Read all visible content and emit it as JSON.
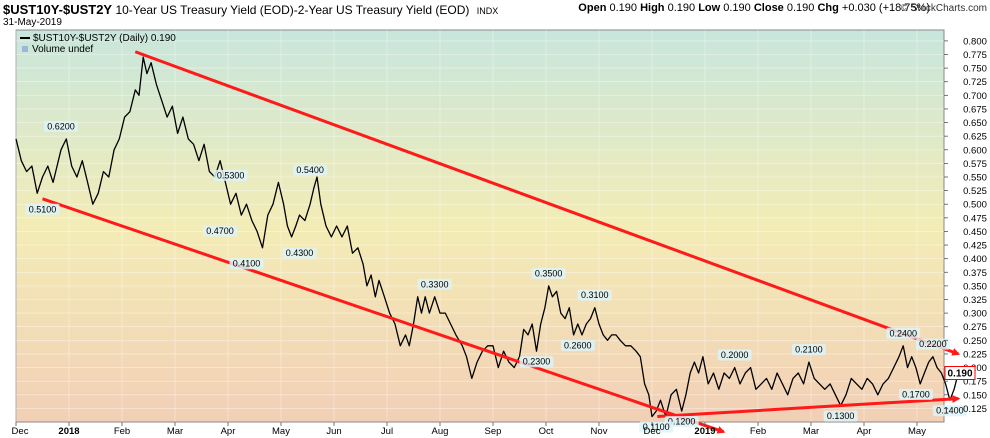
{
  "header": {
    "symbol": "$UST10Y-$UST2Y",
    "description": "10-Year US Treasury Yield (EOD)-2-Year US Treasury Yield (EOD)",
    "exchange": "INDX",
    "date": "31-May-2019",
    "open_label": "Open",
    "open": "0.190",
    "high_label": "High",
    "high": "0.190",
    "low_label": "Low",
    "low": "0.190",
    "close_label": "Close",
    "close": "0.190",
    "chg_label": "Chg",
    "chg": "+0.030 (+18.75%)",
    "brand": "© StockCharts.com"
  },
  "legend": {
    "series_label": "$UST10Y-$UST2Y (Daily) 0.190",
    "volume_label": "Volume undef"
  },
  "colors": {
    "line": "#000000",
    "trend": "#ff1a1a",
    "bg_top": "#c8e6dc",
    "bg_mid": "#f3ecb6",
    "bg_bottom": "#f2cfb6",
    "last_box_border": "#ff0000",
    "label_fill": "#ddf3f8"
  },
  "chart_data": {
    "type": "line",
    "x_unit": "months since Dec 1, 2017",
    "ylim": [
      0.1,
      0.82
    ],
    "xlim": [
      0,
      18.1
    ],
    "yticks": [
      "0.125",
      "0.150",
      "0.175",
      "0.200",
      "0.225",
      "0.250",
      "0.275",
      "0.300",
      "0.325",
      "0.350",
      "0.375",
      "0.400",
      "0.425",
      "0.450",
      "0.475",
      "0.500",
      "0.525",
      "0.550",
      "0.575",
      "0.600",
      "0.625",
      "0.650",
      "0.675",
      "0.700",
      "0.725",
      "0.750",
      "0.775",
      "0.800"
    ],
    "ytick_values": [
      0.125,
      0.15,
      0.175,
      0.2,
      0.225,
      0.25,
      0.275,
      0.3,
      0.325,
      0.35,
      0.375,
      0.4,
      0.425,
      0.45,
      0.475,
      0.5,
      0.525,
      0.55,
      0.575,
      0.6,
      0.625,
      0.65,
      0.675,
      0.7,
      0.725,
      0.75,
      0.775,
      0.8
    ],
    "xticks": [
      {
        "label": "Dec",
        "x": 0,
        "bold": false
      },
      {
        "label": "2018",
        "x": 1,
        "bold": true
      },
      {
        "label": "Feb",
        "x": 2,
        "bold": false
      },
      {
        "label": "Mar",
        "x": 3,
        "bold": false
      },
      {
        "label": "Apr",
        "x": 4,
        "bold": false
      },
      {
        "label": "May",
        "x": 5,
        "bold": false
      },
      {
        "label": "Jun",
        "x": 6,
        "bold": false
      },
      {
        "label": "Jul",
        "x": 7,
        "bold": false
      },
      {
        "label": "Aug",
        "x": 8,
        "bold": false
      },
      {
        "label": "Sep",
        "x": 9,
        "bold": false
      },
      {
        "label": "Oct",
        "x": 10,
        "bold": false
      },
      {
        "label": "Nov",
        "x": 11,
        "bold": false
      },
      {
        "label": "Dec",
        "x": 12,
        "bold": false
      },
      {
        "label": "2019",
        "x": 13,
        "bold": true
      },
      {
        "label": "Feb",
        "x": 14,
        "bold": false
      },
      {
        "label": "Mar",
        "x": 15,
        "bold": false
      },
      {
        "label": "Apr",
        "x": 16,
        "bold": false
      },
      {
        "label": "May",
        "x": 17,
        "bold": false
      }
    ],
    "series": [
      {
        "values": [
          [
            0.0,
            0.62
          ],
          [
            0.1,
            0.58
          ],
          [
            0.2,
            0.56
          ],
          [
            0.3,
            0.57
          ],
          [
            0.4,
            0.52
          ],
          [
            0.5,
            0.55
          ],
          [
            0.6,
            0.57
          ],
          [
            0.7,
            0.54
          ],
          [
            0.85,
            0.6
          ],
          [
            0.95,
            0.62
          ],
          [
            1.05,
            0.57
          ],
          [
            1.15,
            0.55
          ],
          [
            1.25,
            0.58
          ],
          [
            1.35,
            0.54
          ],
          [
            1.45,
            0.5
          ],
          [
            1.55,
            0.52
          ],
          [
            1.65,
            0.56
          ],
          [
            1.75,
            0.55
          ],
          [
            1.85,
            0.6
          ],
          [
            1.95,
            0.62
          ],
          [
            2.05,
            0.66
          ],
          [
            2.15,
            0.67
          ],
          [
            2.25,
            0.71
          ],
          [
            2.32,
            0.7
          ],
          [
            2.4,
            0.77
          ],
          [
            2.47,
            0.74
          ],
          [
            2.55,
            0.76
          ],
          [
            2.65,
            0.72
          ],
          [
            2.75,
            0.69
          ],
          [
            2.85,
            0.66
          ],
          [
            2.95,
            0.68
          ],
          [
            3.05,
            0.63
          ],
          [
            3.15,
            0.66
          ],
          [
            3.25,
            0.62
          ],
          [
            3.35,
            0.61
          ],
          [
            3.45,
            0.58
          ],
          [
            3.55,
            0.61
          ],
          [
            3.65,
            0.56
          ],
          [
            3.75,
            0.55
          ],
          [
            3.85,
            0.58
          ],
          [
            3.95,
            0.54
          ],
          [
            4.05,
            0.5
          ],
          [
            4.15,
            0.52
          ],
          [
            4.25,
            0.48
          ],
          [
            4.35,
            0.5
          ],
          [
            4.45,
            0.47
          ],
          [
            4.55,
            0.45
          ],
          [
            4.65,
            0.42
          ],
          [
            4.75,
            0.48
          ],
          [
            4.85,
            0.5
          ],
          [
            4.95,
            0.54
          ],
          [
            5.05,
            0.5
          ],
          [
            5.12,
            0.46
          ],
          [
            5.2,
            0.44
          ],
          [
            5.28,
            0.46
          ],
          [
            5.35,
            0.48
          ],
          [
            5.45,
            0.47
          ],
          [
            5.55,
            0.5
          ],
          [
            5.62,
            0.53
          ],
          [
            5.68,
            0.55
          ],
          [
            5.75,
            0.5
          ],
          [
            5.85,
            0.46
          ],
          [
            5.95,
            0.44
          ],
          [
            6.05,
            0.46
          ],
          [
            6.15,
            0.44
          ],
          [
            6.25,
            0.46
          ],
          [
            6.35,
            0.41
          ],
          [
            6.45,
            0.42
          ],
          [
            6.55,
            0.39
          ],
          [
            6.62,
            0.35
          ],
          [
            6.7,
            0.37
          ],
          [
            6.78,
            0.33
          ],
          [
            6.85,
            0.36
          ],
          [
            6.95,
            0.33
          ],
          [
            7.05,
            0.3
          ],
          [
            7.15,
            0.28
          ],
          [
            7.25,
            0.24
          ],
          [
            7.35,
            0.26
          ],
          [
            7.42,
            0.24
          ],
          [
            7.5,
            0.28
          ],
          [
            7.58,
            0.33
          ],
          [
            7.65,
            0.3
          ],
          [
            7.72,
            0.33
          ],
          [
            7.8,
            0.3
          ],
          [
            7.9,
            0.33
          ],
          [
            8.0,
            0.3
          ],
          [
            8.1,
            0.3
          ],
          [
            8.2,
            0.28
          ],
          [
            8.3,
            0.26
          ],
          [
            8.42,
            0.24
          ],
          [
            8.5,
            0.22
          ],
          [
            8.6,
            0.18
          ],
          [
            8.7,
            0.21
          ],
          [
            8.8,
            0.23
          ],
          [
            8.9,
            0.24
          ],
          [
            9.0,
            0.24
          ],
          [
            9.1,
            0.2
          ],
          [
            9.2,
            0.23
          ],
          [
            9.3,
            0.21
          ],
          [
            9.4,
            0.2
          ],
          [
            9.5,
            0.22
          ],
          [
            9.58,
            0.27
          ],
          [
            9.66,
            0.26
          ],
          [
            9.74,
            0.28
          ],
          [
            9.82,
            0.23
          ],
          [
            9.9,
            0.28
          ],
          [
            9.98,
            0.31
          ],
          [
            10.05,
            0.35
          ],
          [
            10.12,
            0.33
          ],
          [
            10.2,
            0.34
          ],
          [
            10.28,
            0.3
          ],
          [
            10.36,
            0.29
          ],
          [
            10.44,
            0.31
          ],
          [
            10.52,
            0.26
          ],
          [
            10.6,
            0.28
          ],
          [
            10.68,
            0.26
          ],
          [
            10.76,
            0.28
          ],
          [
            10.84,
            0.29
          ],
          [
            10.92,
            0.31
          ],
          [
            11.0,
            0.28
          ],
          [
            11.08,
            0.26
          ],
          [
            11.16,
            0.25
          ],
          [
            11.24,
            0.26
          ],
          [
            11.32,
            0.26
          ],
          [
            11.4,
            0.25
          ],
          [
            11.5,
            0.24
          ],
          [
            11.6,
            0.24
          ],
          [
            11.7,
            0.23
          ],
          [
            11.78,
            0.22
          ],
          [
            11.86,
            0.17
          ],
          [
            11.94,
            0.15
          ],
          [
            12.0,
            0.11
          ],
          [
            12.08,
            0.12
          ],
          [
            12.16,
            0.14
          ],
          [
            12.26,
            0.11
          ],
          [
            12.36,
            0.15
          ],
          [
            12.46,
            0.16
          ],
          [
            12.56,
            0.12
          ],
          [
            12.64,
            0.15
          ],
          [
            12.72,
            0.19
          ],
          [
            12.8,
            0.21
          ],
          [
            12.88,
            0.19
          ],
          [
            12.96,
            0.22
          ],
          [
            13.06,
            0.17
          ],
          [
            13.16,
            0.19
          ],
          [
            13.26,
            0.16
          ],
          [
            13.36,
            0.19
          ],
          [
            13.46,
            0.18
          ],
          [
            13.56,
            0.2
          ],
          [
            13.66,
            0.17
          ],
          [
            13.76,
            0.19
          ],
          [
            13.86,
            0.2
          ],
          [
            13.96,
            0.16
          ],
          [
            14.06,
            0.17
          ],
          [
            14.16,
            0.18
          ],
          [
            14.26,
            0.16
          ],
          [
            14.36,
            0.19
          ],
          [
            14.46,
            0.17
          ],
          [
            14.56,
            0.15
          ],
          [
            14.66,
            0.18
          ],
          [
            14.76,
            0.19
          ],
          [
            14.86,
            0.17
          ],
          [
            14.96,
            0.21
          ],
          [
            15.06,
            0.18
          ],
          [
            15.16,
            0.17
          ],
          [
            15.26,
            0.16
          ],
          [
            15.36,
            0.17
          ],
          [
            15.46,
            0.15
          ],
          [
            15.56,
            0.13
          ],
          [
            15.66,
            0.15
          ],
          [
            15.76,
            0.18
          ],
          [
            15.86,
            0.17
          ],
          [
            15.96,
            0.16
          ],
          [
            16.06,
            0.18
          ],
          [
            16.16,
            0.17
          ],
          [
            16.26,
            0.15
          ],
          [
            16.36,
            0.17
          ],
          [
            16.46,
            0.18
          ],
          [
            16.56,
            0.2
          ],
          [
            16.66,
            0.22
          ],
          [
            16.74,
            0.24
          ],
          [
            16.82,
            0.2
          ],
          [
            16.9,
            0.22
          ],
          [
            16.98,
            0.2
          ],
          [
            17.06,
            0.17
          ],
          [
            17.14,
            0.19
          ],
          [
            17.22,
            0.21
          ],
          [
            17.3,
            0.22
          ],
          [
            17.38,
            0.2
          ],
          [
            17.46,
            0.19
          ],
          [
            17.54,
            0.17
          ],
          [
            17.62,
            0.14
          ],
          [
            17.7,
            0.16
          ],
          [
            17.78,
            0.19
          ]
        ]
      }
    ],
    "annotations": [
      {
        "label": "0.6200",
        "x": 0.85,
        "y": 0.62,
        "pos": "above"
      },
      {
        "label": "0.5100",
        "x": 0.5,
        "y": 0.51,
        "pos": "below"
      },
      {
        "label": "0.5300",
        "x": 4.05,
        "y": 0.53,
        "pos": "above"
      },
      {
        "label": "0.5400",
        "x": 5.55,
        "y": 0.54,
        "pos": "above"
      },
      {
        "label": "0.4700",
        "x": 3.85,
        "y": 0.47,
        "pos": "below"
      },
      {
        "label": "0.4100",
        "x": 4.35,
        "y": 0.41,
        "pos": "below"
      },
      {
        "label": "0.4300",
        "x": 5.35,
        "y": 0.43,
        "pos": "below"
      },
      {
        "label": "0.3300",
        "x": 7.9,
        "y": 0.33,
        "pos": "above"
      },
      {
        "label": "0.3500",
        "x": 10.05,
        "y": 0.35,
        "pos": "above"
      },
      {
        "label": "0.3100",
        "x": 10.92,
        "y": 0.31,
        "pos": "above"
      },
      {
        "label": "0.2600",
        "x": 10.6,
        "y": 0.26,
        "pos": "below"
      },
      {
        "label": "0.2300",
        "x": 9.82,
        "y": 0.23,
        "pos": "below"
      },
      {
        "label": "0.2000",
        "x": 13.56,
        "y": 0.2,
        "pos": "above"
      },
      {
        "label": "0.2100",
        "x": 14.96,
        "y": 0.21,
        "pos": "above"
      },
      {
        "label": "0.2400",
        "x": 16.74,
        "y": 0.24,
        "pos": "above"
      },
      {
        "label": "0.2200",
        "x": 17.3,
        "y": 0.22,
        "pos": "above"
      },
      {
        "label": "0.1700",
        "x": 16.98,
        "y": 0.17,
        "pos": "below"
      },
      {
        "label": "0.1300",
        "x": 15.56,
        "y": 0.13,
        "pos": "below"
      },
      {
        "label": "0.1400",
        "x": 17.62,
        "y": 0.14,
        "pos": "below"
      },
      {
        "label": "0.1200",
        "x": 12.56,
        "y": 0.12,
        "pos": "below"
      },
      {
        "label": "0.1100",
        "x": 12.08,
        "y": 0.11,
        "pos": "below"
      }
    ],
    "trendlines": [
      {
        "from": [
          2.25,
          0.78
        ],
        "to": [
          17.78,
          0.225
        ],
        "arrow": true
      },
      {
        "from": [
          0.5,
          0.51
        ],
        "to": [
          13.35,
          0.082
        ],
        "arrow": true
      },
      {
        "from": [
          12.1,
          0.11
        ],
        "to": [
          17.78,
          0.143
        ],
        "arrow": true
      }
    ],
    "last_value": "0.190",
    "last_y": 0.19
  }
}
